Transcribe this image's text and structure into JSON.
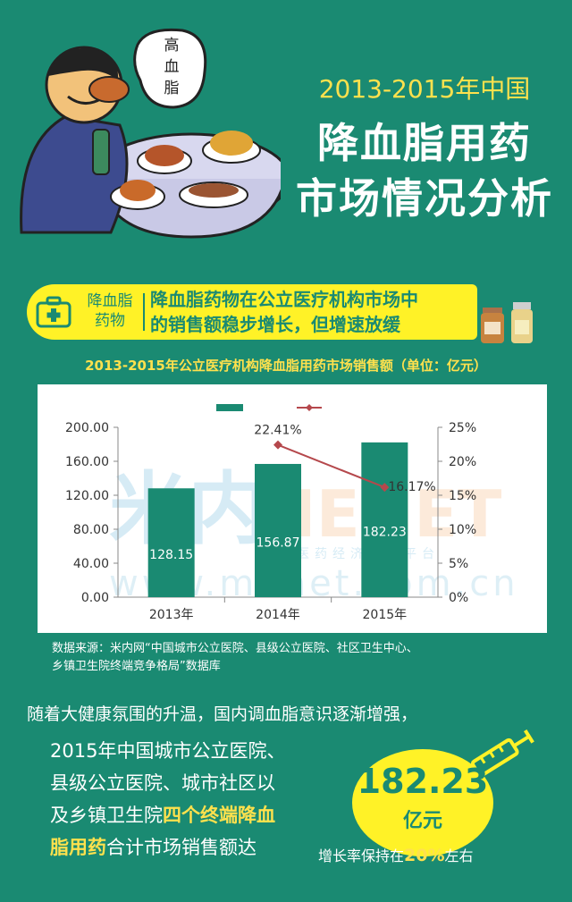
{
  "header": {
    "year_range": "2013-2015年中国",
    "title_line1": "降血脂用药",
    "title_line2": "市场情况分析",
    "bubble_text": "高血脂"
  },
  "banner": {
    "tag_line1": "降血脂",
    "tag_line2": "药物",
    "text_line1": "降血脂药物在公立医疗机构市场中",
    "text_line2": "的销售额稳步增长，但增速放缓"
  },
  "chart_data": {
    "type": "bar",
    "title": "2013-2015年公立医疗机构降血脂用药市场销售额（单位：亿元）",
    "categories": [
      "2013年",
      "2014年",
      "2015年"
    ],
    "series": [
      {
        "kind": "bar",
        "axis": "left",
        "values": [
          128.15,
          156.87,
          182.23
        ],
        "labels": [
          "128.15",
          "156.87",
          "182.23"
        ],
        "color": "#1a8a72"
      },
      {
        "kind": "line",
        "axis": "right",
        "values": [
          null,
          22.41,
          16.17
        ],
        "labels": [
          "",
          "22.41%",
          "16.17%"
        ],
        "color": "#b5484c"
      }
    ],
    "left_axis": {
      "ticks": [
        "0.00",
        "40.00",
        "80.00",
        "120.00",
        "160.00",
        "200.00"
      ],
      "ylim": [
        0,
        200
      ]
    },
    "right_axis": {
      "ticks": [
        "0%",
        "5%",
        "10%",
        "15%",
        "20%",
        "25%"
      ],
      "ylim": [
        0,
        25
      ]
    },
    "watermark": {
      "cn": "米内",
      "en": "MENET",
      "sub": "中国医药经济信息平台",
      "url": "www.menet.com.cn"
    },
    "grid": false,
    "legend": "top"
  },
  "source": {
    "line1": "数据来源：米内网“中国城市公立医院、县级公立医院、社区卫生中心、",
    "line2": "乡镇卫生院终端竞争格局”数据库"
  },
  "summary": {
    "para1": "随着大健康氛围的升温，国内调血脂意识逐渐增强，",
    "para2_line1": "2015年中国城市公立医院、",
    "para2_line2": "县级公立医院、城市社区以",
    "para2_line3_a": "及乡镇卫生院",
    "para2_line3_b": "四个终端降血",
    "para2_line4_a": "脂用药",
    "para2_line4_b": "合计市场销售额达",
    "value": "182.23",
    "unit": "亿元",
    "growth_prefix": "增长率保持在",
    "growth_pct": "20%",
    "growth_suffix": "左右"
  },
  "colors": {
    "background": "#1a8a72",
    "accent_yellow": "#fff227",
    "title_yellow": "#ffe14d",
    "line_red": "#b5484c"
  }
}
